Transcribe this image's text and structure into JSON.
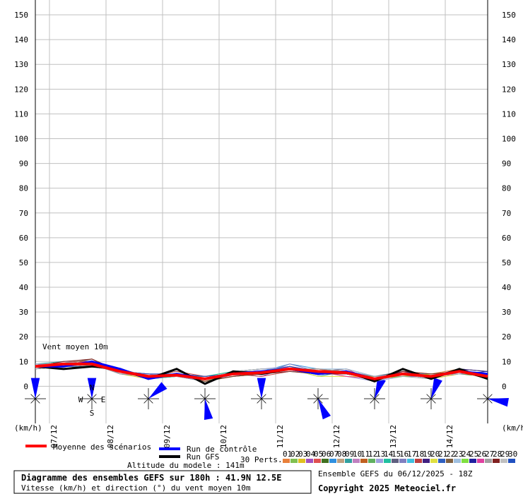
{
  "chart_data": {
    "type": "line",
    "annotation": "Vent moyen 10m",
    "y_unit_label": "(km/h)",
    "perturbations_label": "30 Perts.",
    "altitude": "Altitude du modele : 141m",
    "title": "Diagramme des ensembles GEFS sur 180h : 41.9N 12.5E",
    "subtitle": "Vitesse (km/h) et direction (°) du vent moyen 10m",
    "run_info": "Ensemble GEFS du 06/12/2025 - 18Z",
    "copyright": "Copyright 2025 Meteociel.fr",
    "compass": [
      "N",
      "W",
      "E",
      "S"
    ],
    "xlim": [
      0,
      192
    ],
    "ylim": [
      -15,
      156
    ],
    "xticks": [
      {
        "value": 6,
        "label": "07/12"
      },
      {
        "value": 30,
        "label": "08/12"
      },
      {
        "value": 54,
        "label": "09/12"
      },
      {
        "value": 78,
        "label": "10/12"
      },
      {
        "value": 102,
        "label": "11/12"
      },
      {
        "value": 126,
        "label": "12/12"
      },
      {
        "value": 150,
        "label": "13/12"
      },
      {
        "value": 174,
        "label": "14/12"
      }
    ],
    "yticks": [
      0,
      10,
      20,
      30,
      40,
      50,
      60,
      70,
      80,
      90,
      100,
      110,
      120,
      130,
      140,
      150
    ],
    "grid": true,
    "x": [
      0,
      12,
      24,
      36,
      48,
      60,
      72,
      84,
      96,
      108,
      120,
      132,
      144,
      156,
      168,
      180,
      192
    ],
    "series": [
      {
        "name": "Moyenne des scénarios",
        "color": "#ff0000",
        "values": [
          8,
          9,
          9,
          6,
          4,
          4.5,
          3,
          5,
          5.5,
          7,
          6,
          5.5,
          3,
          5,
          4,
          6,
          4
        ]
      },
      {
        "name": "Run de contrôle",
        "color": "#0000ff",
        "values": [
          8,
          8,
          10,
          7,
          3,
          5,
          3,
          5,
          6,
          7,
          5,
          6,
          3,
          5,
          4,
          6,
          5
        ]
      },
      {
        "name": "Run GFS",
        "color": "#000000",
        "values": [
          8,
          7,
          8,
          7,
          3,
          7,
          1,
          6,
          5,
          7,
          5,
          6,
          2,
          7,
          3,
          7,
          3
        ]
      },
      {
        "name": "01",
        "color": "#e8803a",
        "values": [
          7,
          8,
          10,
          7,
          3,
          5,
          3,
          4,
          6,
          8,
          5,
          6,
          2,
          6,
          5,
          7,
          3
        ]
      },
      {
        "name": "02",
        "color": "#80c050",
        "values": [
          9,
          8,
          11,
          6,
          4,
          4,
          2,
          5,
          5,
          7,
          7,
          5,
          3,
          4,
          4,
          6,
          5
        ]
      },
      {
        "name": "03",
        "color": "#e0c020",
        "values": [
          8,
          10,
          9,
          5,
          3,
          5,
          4,
          6,
          6,
          6,
          6,
          4,
          4,
          5,
          3,
          5,
          4
        ]
      },
      {
        "name": "04",
        "color": "#a050c0",
        "values": [
          7,
          9,
          8,
          6,
          5,
          4,
          3,
          5,
          4,
          8,
          5,
          6,
          3,
          6,
          4,
          7,
          6
        ]
      },
      {
        "name": "05",
        "color": "#e05050",
        "values": [
          9,
          9,
          10,
          7,
          4,
          5,
          2,
          4,
          5,
          7,
          6,
          7,
          2,
          5,
          5,
          6,
          3
        ]
      },
      {
        "name": "06",
        "color": "#407020",
        "values": [
          8,
          7,
          9,
          6,
          3,
          4,
          3,
          6,
          7,
          7,
          5,
          5,
          3,
          4,
          4,
          5,
          4
        ]
      },
      {
        "name": "07",
        "color": "#3090e0",
        "values": [
          7,
          9,
          10,
          5,
          4,
          5,
          4,
          5,
          6,
          9,
          7,
          6,
          4,
          5,
          3,
          6,
          5
        ]
      },
      {
        "name": "08",
        "color": "#c0a080",
        "values": [
          8,
          8,
          8,
          6,
          5,
          4,
          2,
          5,
          5,
          6,
          6,
          5,
          3,
          6,
          4,
          7,
          4
        ]
      },
      {
        "name": "09",
        "color": "#30a0a0",
        "values": [
          9,
          10,
          9,
          7,
          4,
          6,
          3,
          4,
          6,
          7,
          4,
          6,
          2,
          5,
          5,
          6,
          3
        ]
      },
      {
        "name": "10",
        "color": "#c080c0",
        "values": [
          8,
          9,
          11,
          6,
          3,
          4,
          4,
          5,
          5,
          8,
          6,
          5,
          3,
          4,
          4,
          5,
          5
        ]
      },
      {
        "name": "11",
        "color": "#c06020",
        "values": [
          7,
          8,
          9,
          5,
          4,
          5,
          3,
          6,
          6,
          7,
          7,
          6,
          3,
          5,
          3,
          6,
          4
        ]
      },
      {
        "name": "12",
        "color": "#60b060",
        "values": [
          8,
          9,
          10,
          6,
          5,
          4,
          2,
          5,
          5,
          6,
          5,
          5,
          4,
          6,
          4,
          7,
          6
        ]
      },
      {
        "name": "13",
        "color": "#a0a0e0",
        "values": [
          9,
          8,
          9,
          7,
          4,
          5,
          3,
          4,
          7,
          8,
          6,
          4,
          2,
          4,
          5,
          6,
          3
        ]
      },
      {
        "name": "14",
        "color": "#20c0a0",
        "values": [
          8,
          10,
          8,
          6,
          3,
          4,
          4,
          6,
          5,
          7,
          5,
          6,
          3,
          5,
          4,
          5,
          5
        ]
      },
      {
        "name": "15",
        "color": "#606080",
        "values": [
          7,
          9,
          10,
          5,
          4,
          5,
          3,
          5,
          6,
          7,
          6,
          7,
          4,
          6,
          3,
          6,
          4
        ]
      },
      {
        "name": "16",
        "color": "#8080c0",
        "values": [
          8,
          8,
          11,
          6,
          5,
          4,
          2,
          4,
          5,
          9,
          6,
          5,
          3,
          4,
          4,
          7,
          3
        ]
      },
      {
        "name": "17",
        "color": "#40c0e0",
        "values": [
          9,
          9,
          9,
          7,
          3,
          5,
          3,
          6,
          6,
          7,
          5,
          6,
          2,
          5,
          5,
          5,
          5
        ]
      },
      {
        "name": "18",
        "color": "#c04040",
        "values": [
          8,
          10,
          10,
          6,
          4,
          6,
          4,
          5,
          4,
          6,
          7,
          5,
          3,
          6,
          4,
          6,
          4
        ]
      },
      {
        "name": "19",
        "color": "#402080",
        "values": [
          7,
          8,
          9,
          5,
          5,
          4,
          3,
          5,
          6,
          8,
          6,
          6,
          4,
          5,
          3,
          7,
          6
        ]
      },
      {
        "name": "20",
        "color": "#e0e040",
        "values": [
          8,
          9,
          10,
          6,
          3,
          5,
          2,
          4,
          5,
          7,
          4,
          4,
          3,
          4,
          5,
          6,
          3
        ]
      },
      {
        "name": "21",
        "color": "#3060c0",
        "values": [
          9,
          8,
          8,
          7,
          4,
          4,
          3,
          6,
          7,
          7,
          6,
          6,
          2,
          5,
          4,
          5,
          5
        ]
      },
      {
        "name": "22",
        "color": "#806040",
        "values": [
          8,
          9,
          11,
          6,
          4,
          5,
          4,
          5,
          5,
          8,
          5,
          5,
          3,
          6,
          4,
          7,
          4
        ]
      },
      {
        "name": "23",
        "color": "#a0c0e0",
        "values": [
          7,
          10,
          9,
          5,
          5,
          4,
          3,
          5,
          6,
          6,
          7,
          7,
          4,
          5,
          3,
          6,
          5
        ]
      },
      {
        "name": "24",
        "color": "#80e040",
        "values": [
          8,
          8,
          10,
          6,
          3,
          5,
          2,
          4,
          5,
          7,
          6,
          5,
          3,
          4,
          5,
          6,
          3
        ]
      },
      {
        "name": "25",
        "color": "#2020a0",
        "values": [
          9,
          9,
          9,
          7,
          4,
          4,
          3,
          6,
          6,
          7,
          5,
          6,
          2,
          6,
          4,
          5,
          6
        ]
      },
      {
        "name": "26",
        "color": "#e040a0",
        "values": [
          8,
          9,
          10,
          6,
          5,
          5,
          4,
          5,
          5,
          8,
          6,
          4,
          3,
          5,
          4,
          7,
          4
        ]
      },
      {
        "name": "27",
        "color": "#a0a0a0",
        "values": [
          7,
          8,
          9,
          5,
          4,
          4,
          3,
          5,
          6,
          7,
          7,
          6,
          4,
          4,
          3,
          6,
          5
        ]
      },
      {
        "name": "28",
        "color": "#802020",
        "values": [
          8,
          10,
          11,
          6,
          3,
          5,
          2,
          4,
          5,
          6,
          5,
          5,
          3,
          6,
          5,
          6,
          3
        ]
      },
      {
        "name": "29",
        "color": "#c0c0c0",
        "values": [
          9,
          9,
          8,
          7,
          4,
          4,
          3,
          6,
          7,
          7,
          6,
          6,
          2,
          5,
          4,
          5,
          5
        ]
      },
      {
        "name": "30",
        "color": "#2050c0",
        "values": [
          8,
          8,
          10,
          6,
          5,
          5,
          4,
          5,
          6,
          8,
          6,
          5,
          3,
          5,
          4,
          7,
          4
        ]
      }
    ],
    "wind_directions": {
      "x": [
        0,
        24,
        48,
        72,
        96,
        120,
        144,
        168,
        192
      ],
      "values": [
        0,
        0,
        50,
        170,
        0,
        155,
        20,
        20,
        100
      ],
      "color": "#0000ff"
    }
  }
}
